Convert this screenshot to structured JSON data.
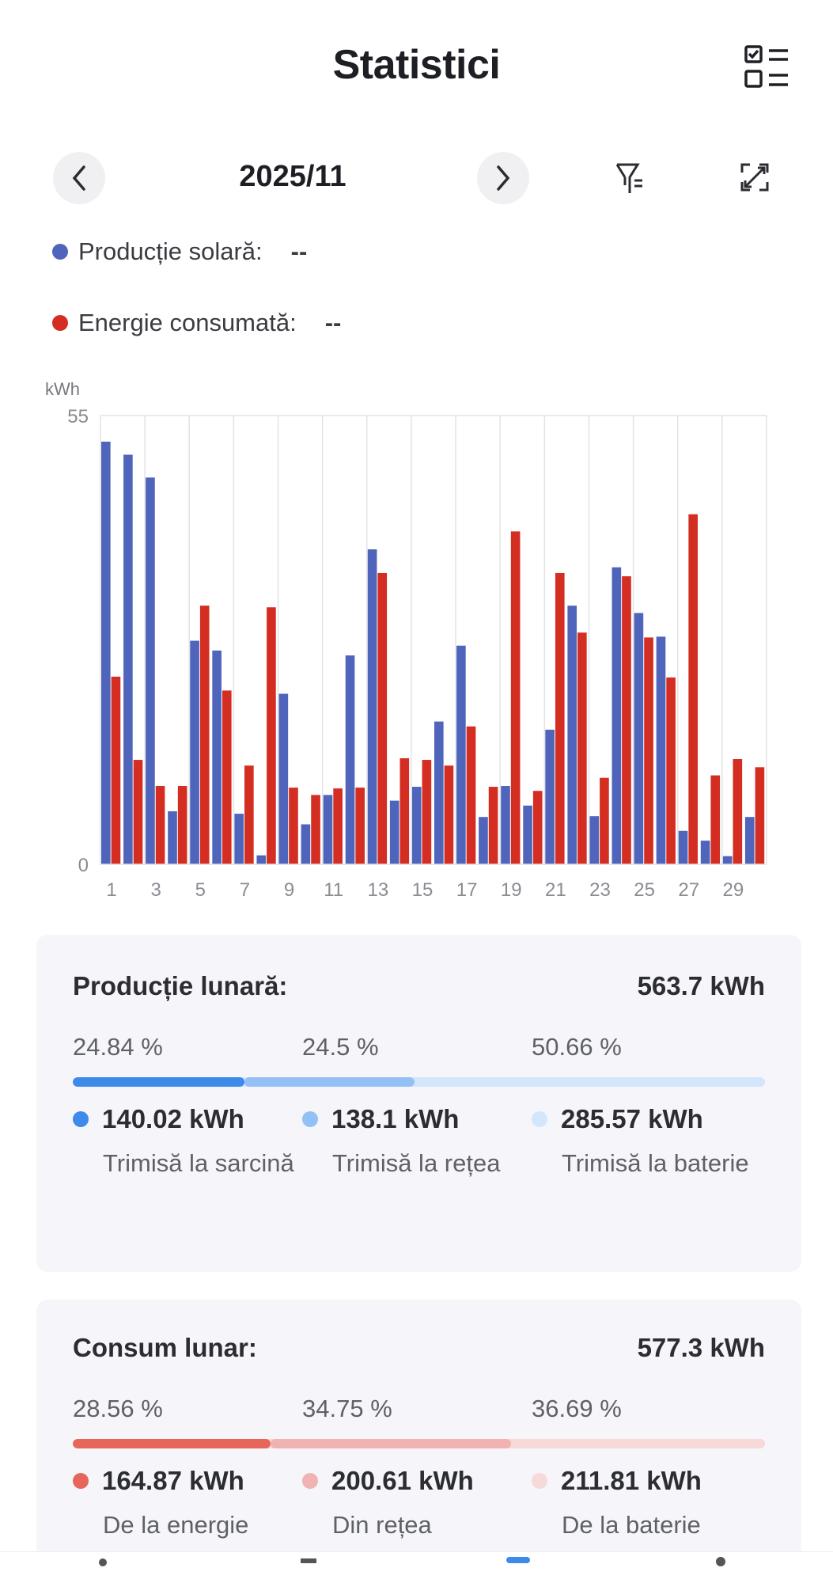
{
  "header": {
    "title": "Statistici"
  },
  "nav": {
    "date": "2025/11"
  },
  "legend": [
    {
      "label": "Producție solară:",
      "value": "--",
      "color": "#4e65bb"
    },
    {
      "label": "Energie consumată:",
      "value": "--",
      "color": "#d42d22"
    }
  ],
  "chart_data": {
    "type": "bar",
    "ylabel": "kWh",
    "ylim": [
      0,
      55
    ],
    "yticks": [
      "0",
      "55"
    ],
    "xticks": [
      "1",
      "3",
      "5",
      "7",
      "9",
      "11",
      "13",
      "15",
      "17",
      "19",
      "21",
      "23",
      "25",
      "27",
      "29"
    ],
    "categories": [
      1,
      2,
      3,
      4,
      5,
      6,
      7,
      8,
      9,
      10,
      11,
      12,
      13,
      14,
      15,
      16,
      17,
      18,
      19,
      20,
      21,
      22,
      23,
      24,
      25,
      26,
      27,
      28,
      29,
      30
    ],
    "series": [
      {
        "name": "Producție solară",
        "color": "#4e65bb",
        "values": [
          51.8,
          50.2,
          47.4,
          6.5,
          27.4,
          26.2,
          6.2,
          1.1,
          20.9,
          4.9,
          8.5,
          25.6,
          38.6,
          7.8,
          9.5,
          17.5,
          26.8,
          5.8,
          9.6,
          7.2,
          16.5,
          31.7,
          5.9,
          36.4,
          30.8,
          27.9,
          4.1,
          2.9,
          1.0,
          5.8
        ]
      },
      {
        "name": "Energie consumată",
        "color": "#d42d22",
        "values": [
          23.0,
          12.8,
          9.6,
          9.6,
          31.7,
          21.3,
          12.1,
          31.5,
          9.4,
          8.5,
          9.3,
          9.4,
          35.7,
          13.0,
          12.8,
          12.1,
          16.9,
          9.5,
          40.8,
          9.0,
          35.7,
          28.4,
          10.6,
          35.3,
          27.8,
          22.9,
          42.9,
          10.9,
          12.9,
          11.9
        ]
      }
    ]
  },
  "production": {
    "title": "Producție lunară:",
    "total": "563.7 kWh",
    "items": [
      {
        "pct": "24.84 %",
        "share": 24.84,
        "kwh": "140.02 kWh",
        "label": "Trimisă la sarcină",
        "color": "#3d8aeb"
      },
      {
        "pct": "24.5 %",
        "share": 24.5,
        "kwh": "138.1 kWh",
        "label": "Trimisă la rețea",
        "color": "#93c1f5"
      },
      {
        "pct": "50.66 %",
        "share": 50.66,
        "kwh": "285.57 kWh",
        "label": "Trimisă la baterie",
        "color": "#d4e6fb"
      }
    ]
  },
  "consumption": {
    "title": "Consum lunar:",
    "total": "577.3 kWh",
    "items": [
      {
        "pct": "28.56 %",
        "share": 28.56,
        "kwh": "164.87 kWh",
        "label": "De la energie",
        "color": "#e6665b"
      },
      {
        "pct": "34.75 %",
        "share": 34.75,
        "kwh": "200.61 kWh",
        "label": "Din rețea",
        "color": "#f0b3b1"
      },
      {
        "pct": "36.69 %",
        "share": 36.69,
        "kwh": "211.81 kWh",
        "label": "De la baterie",
        "color": "#f8d9d9"
      }
    ]
  }
}
